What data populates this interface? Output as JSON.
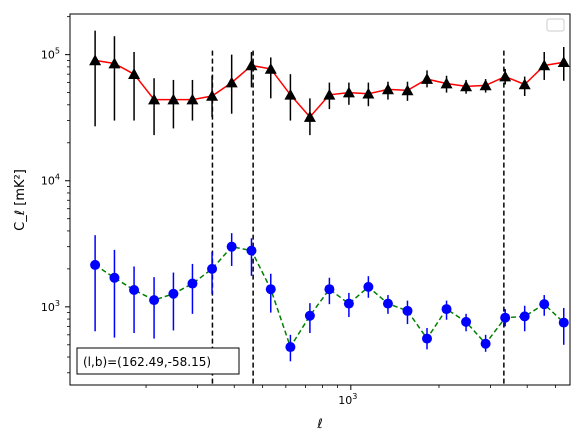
{
  "chart_data": {
    "type": "scatter",
    "xscale": "log",
    "yscale": "log",
    "xlim": [
      110,
      5600
    ],
    "ylim": [
      240,
      210000
    ],
    "xlabel": "ℓ",
    "ylabel": "C_ℓ  [mK²]",
    "x_tick_labels": [
      {
        "value": 1000,
        "label": "10",
        "exp": "3"
      }
    ],
    "y_tick_labels": [
      {
        "value": 1000,
        "label": "10",
        "exp": "3"
      },
      {
        "value": 10000,
        "label": "10",
        "exp": "4"
      },
      {
        "value": 100000,
        "label": "10",
        "exp": "5"
      }
    ],
    "legend": "upper right (empty box)",
    "annotation": "(l,b)=(162.49,-58.15)",
    "vlines": [
      337,
      464,
      3330
    ],
    "series": [
      {
        "marker": "triangle",
        "marker_color": "#000000",
        "errorbar_color": "#000000",
        "line_color": "#ff0000",
        "line_style": "solid",
        "points": [
          {
            "x": 134,
            "y": 90000,
            "lo": 27000,
            "hi": 155000
          },
          {
            "x": 156,
            "y": 85000,
            "lo": 30000,
            "hi": 140000
          },
          {
            "x": 182,
            "y": 70000,
            "lo": 30000,
            "hi": 105000
          },
          {
            "x": 213,
            "y": 44000,
            "lo": 23000,
            "hi": 65000
          },
          {
            "x": 248,
            "y": 44000,
            "lo": 26000,
            "hi": 63000
          },
          {
            "x": 288,
            "y": 44000,
            "lo": 30000,
            "hi": 63000
          },
          {
            "x": 336,
            "y": 47000,
            "lo": 32000,
            "hi": 68000
          },
          {
            "x": 392,
            "y": 60000,
            "lo": 34000,
            "hi": 100000
          },
          {
            "x": 458,
            "y": 82000,
            "lo": 55000,
            "hi": 105000
          },
          {
            "x": 533,
            "y": 77000,
            "lo": 45000,
            "hi": 95000
          },
          {
            "x": 622,
            "y": 48000,
            "lo": 30000,
            "hi": 70000
          },
          {
            "x": 725,
            "y": 32000,
            "lo": 23000,
            "hi": 45000
          },
          {
            "x": 845,
            "y": 48000,
            "lo": 37000,
            "hi": 60000
          },
          {
            "x": 985,
            "y": 50000,
            "lo": 40000,
            "hi": 60000
          },
          {
            "x": 1148,
            "y": 49000,
            "lo": 39000,
            "hi": 60000
          },
          {
            "x": 1339,
            "y": 53000,
            "lo": 44000,
            "hi": 61000
          },
          {
            "x": 1561,
            "y": 52000,
            "lo": 43000,
            "hi": 61000
          },
          {
            "x": 1820,
            "y": 64000,
            "lo": 55000,
            "hi": 75000
          },
          {
            "x": 2122,
            "y": 59000,
            "lo": 50000,
            "hi": 68000
          },
          {
            "x": 2474,
            "y": 56000,
            "lo": 49000,
            "hi": 63000
          },
          {
            "x": 2885,
            "y": 57000,
            "lo": 50000,
            "hi": 64000
          },
          {
            "x": 3364,
            "y": 67000,
            "lo": 58000,
            "hi": 77000
          },
          {
            "x": 3922,
            "y": 58000,
            "lo": 47000,
            "hi": 67000
          },
          {
            "x": 4573,
            "y": 82000,
            "lo": 63000,
            "hi": 105000
          },
          {
            "x": 5332,
            "y": 87000,
            "lo": 62000,
            "hi": 115000
          }
        ]
      },
      {
        "marker": "circle",
        "marker_color": "#0000ff",
        "errorbar_color": "#0000ff",
        "line_color": "#008000",
        "line_style": "dashed",
        "points": [
          {
            "x": 134,
            "y": 2150,
            "lo": 640,
            "hi": 3700
          },
          {
            "x": 156,
            "y": 1700,
            "lo": 570,
            "hi": 2830
          },
          {
            "x": 182,
            "y": 1360,
            "lo": 620,
            "hi": 2090
          },
          {
            "x": 213,
            "y": 1130,
            "lo": 560,
            "hi": 1720
          },
          {
            "x": 248,
            "y": 1270,
            "lo": 650,
            "hi": 1870
          },
          {
            "x": 288,
            "y": 1530,
            "lo": 880,
            "hi": 2190
          },
          {
            "x": 336,
            "y": 2000,
            "lo": 1260,
            "hi": 2730
          },
          {
            "x": 392,
            "y": 3000,
            "lo": 2110,
            "hi": 3840
          },
          {
            "x": 458,
            "y": 2790,
            "lo": 1760,
            "hi": 3500
          },
          {
            "x": 533,
            "y": 1380,
            "lo": 900,
            "hi": 1830
          },
          {
            "x": 622,
            "y": 480,
            "lo": 370,
            "hi": 600
          },
          {
            "x": 725,
            "y": 850,
            "lo": 620,
            "hi": 1070
          },
          {
            "x": 845,
            "y": 1380,
            "lo": 1050,
            "hi": 1700
          },
          {
            "x": 985,
            "y": 1060,
            "lo": 830,
            "hi": 1290
          },
          {
            "x": 1148,
            "y": 1440,
            "lo": 1180,
            "hi": 1750
          },
          {
            "x": 1339,
            "y": 1060,
            "lo": 880,
            "hi": 1240
          },
          {
            "x": 1561,
            "y": 930,
            "lo": 730,
            "hi": 1120
          },
          {
            "x": 1820,
            "y": 560,
            "lo": 460,
            "hi": 680
          },
          {
            "x": 2122,
            "y": 960,
            "lo": 790,
            "hi": 1120
          },
          {
            "x": 2474,
            "y": 760,
            "lo": 640,
            "hi": 880
          },
          {
            "x": 2885,
            "y": 510,
            "lo": 440,
            "hi": 600
          },
          {
            "x": 3364,
            "y": 820,
            "lo": 700,
            "hi": 960
          },
          {
            "x": 3922,
            "y": 840,
            "lo": 640,
            "hi": 1020
          },
          {
            "x": 4573,
            "y": 1050,
            "lo": 850,
            "hi": 1240
          },
          {
            "x": 5332,
            "y": 750,
            "lo": 500,
            "hi": 980
          }
        ]
      }
    ]
  }
}
